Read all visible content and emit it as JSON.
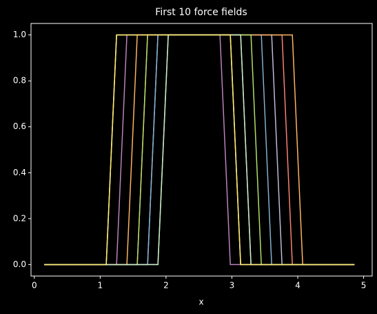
{
  "chart_data": {
    "type": "line",
    "title": "First 10 force fields",
    "x_label": "x",
    "x": [
      0.15,
      0.307,
      0.464,
      0.621,
      0.778,
      0.935,
      1.092,
      1.249,
      1.406,
      1.563,
      1.72,
      1.877,
      2.034,
      2.191,
      2.348,
      2.505,
      2.662,
      2.819,
      2.976,
      3.133,
      3.29,
      3.447,
      3.604,
      3.761,
      3.918,
      4.075,
      4.232,
      4.389,
      4.546,
      4.703,
      4.86
    ],
    "series": [
      {
        "color": "#8dd3c7",
        "values": [
          0,
          0,
          0,
          0,
          0,
          0,
          0,
          0,
          0,
          0,
          0,
          0,
          1,
          1,
          1,
          1,
          1,
          1,
          1,
          1,
          0,
          0,
          0,
          0,
          0,
          0,
          0,
          0,
          0,
          0,
          0
        ]
      },
      {
        "color": "#feffb3",
        "values": [
          0,
          0,
          0,
          0,
          0,
          0,
          0,
          1,
          1,
          1,
          1,
          1,
          1,
          1,
          1,
          1,
          1,
          1,
          1,
          0,
          0,
          0,
          0,
          0,
          0,
          0,
          0,
          0,
          0,
          0,
          0
        ]
      },
      {
        "color": "#bfbbd9",
        "values": [
          0,
          0,
          0,
          0,
          0,
          0,
          0,
          0,
          0,
          0,
          0,
          1,
          1,
          1,
          1,
          1,
          1,
          1,
          1,
          1,
          1,
          1,
          1,
          0,
          0,
          0,
          0,
          0,
          0,
          0,
          0
        ]
      },
      {
        "color": "#fa8174",
        "values": [
          0,
          0,
          0,
          0,
          0,
          0,
          0,
          0,
          0,
          0,
          1,
          1,
          1,
          1,
          1,
          1,
          1,
          1,
          1,
          1,
          1,
          1,
          1,
          1,
          0,
          0,
          0,
          0,
          0,
          0,
          0
        ]
      },
      {
        "color": "#81b1d2",
        "values": [
          0,
          0,
          0,
          0,
          0,
          0,
          0,
          0,
          0,
          0,
          0,
          1,
          1,
          1,
          1,
          1,
          1,
          1,
          1,
          1,
          1,
          1,
          0,
          0,
          0,
          0,
          0,
          0,
          0,
          0,
          0
        ]
      },
      {
        "color": "#fdb462",
        "values": [
          0,
          0,
          0,
          0,
          0,
          0,
          0,
          0,
          0,
          1,
          1,
          1,
          1,
          1,
          1,
          1,
          1,
          1,
          1,
          1,
          1,
          1,
          1,
          1,
          1,
          0,
          0,
          0,
          0,
          0,
          0
        ]
      },
      {
        "color": "#b3de69",
        "values": [
          0,
          0,
          0,
          0,
          0,
          0,
          0,
          0,
          0,
          0,
          1,
          1,
          1,
          1,
          1,
          1,
          1,
          1,
          1,
          1,
          1,
          0,
          0,
          0,
          0,
          0,
          0,
          0,
          0,
          0,
          0
        ]
      },
      {
        "color": "#bc82bd",
        "values": [
          0,
          0,
          0,
          0,
          0,
          0,
          0,
          0,
          1,
          1,
          1,
          1,
          1,
          1,
          1,
          1,
          1,
          1,
          0,
          0,
          0,
          0,
          0,
          0,
          0,
          0,
          0,
          0,
          0,
          0,
          0
        ]
      },
      {
        "color": "#ccebc4",
        "values": [
          0,
          0,
          0,
          0,
          0,
          0,
          0,
          0,
          0,
          0,
          0,
          0,
          1,
          1,
          1,
          1,
          1,
          1,
          1,
          1,
          0,
          0,
          0,
          0,
          0,
          0,
          0,
          0,
          0,
          0,
          0
        ]
      },
      {
        "color": "#ffed6f",
        "values": [
          0,
          0,
          0,
          0,
          0,
          0,
          0,
          1,
          1,
          1,
          1,
          1,
          1,
          1,
          1,
          1,
          1,
          1,
          1,
          0,
          0,
          0,
          0,
          0,
          0,
          0,
          0,
          0,
          0,
          0,
          0
        ]
      }
    ],
    "xlim": [
      -0.05,
      5.13
    ],
    "ylim": [
      -0.05,
      1.05
    ],
    "xticks": [
      0,
      1,
      2,
      3,
      4,
      5
    ],
    "yticks": [
      {
        "value": 0,
        "label": "0.0"
      },
      {
        "value": 0.2,
        "label": "0.2"
      },
      {
        "value": 0.4,
        "label": "0.4"
      },
      {
        "value": 0.6,
        "label": "0.6"
      },
      {
        "value": 0.8,
        "label": "0.8"
      },
      {
        "value": 1,
        "label": "1.0"
      }
    ]
  }
}
